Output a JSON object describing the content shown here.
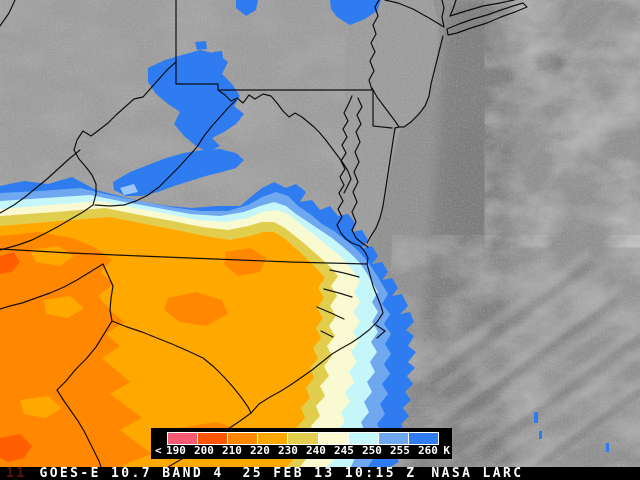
{
  "status_bar": {
    "station_id": "11",
    "product": "GOES-E 10.7 BAND 4",
    "timestamp": "25 FEB 13 10:15 Z",
    "credit": "NASA LARC"
  },
  "colorbar": {
    "lt_label": "<",
    "units_label": "K",
    "ticks": [
      "190",
      "200",
      "210",
      "220",
      "230",
      "240",
      "245",
      "250",
      "255",
      "260"
    ],
    "segment_colors": [
      "#f85a74",
      "#ff5400",
      "#ff8800",
      "#ffa800",
      "#e2ce4e",
      "#fafad2",
      "#c4f6fa",
      "#70a8f0",
      "#2f7cf1"
    ],
    "units": "K"
  },
  "map_colors": {
    "land_gray": "#9c9c9c",
    "ocean_gray": "#8f8f8f",
    "dark_cloudfree_band": "#7d7d7d",
    "bright_cloud_streak": "#b2b2b2",
    "border_line": "#000000",
    "enhancement_blue": "#2f7cf1",
    "enhancement_light_blue": "#70a8f0",
    "enhancement_pale_cyan": "#c4f6fa",
    "enhancement_pale_yellow": "#fafad2",
    "enhancement_yellow": "#e2ce4e",
    "enhancement_amber": "#ffa800",
    "enhancement_orange": "#ff8800",
    "enhancement_deep_orange": "#ff5f00"
  }
}
